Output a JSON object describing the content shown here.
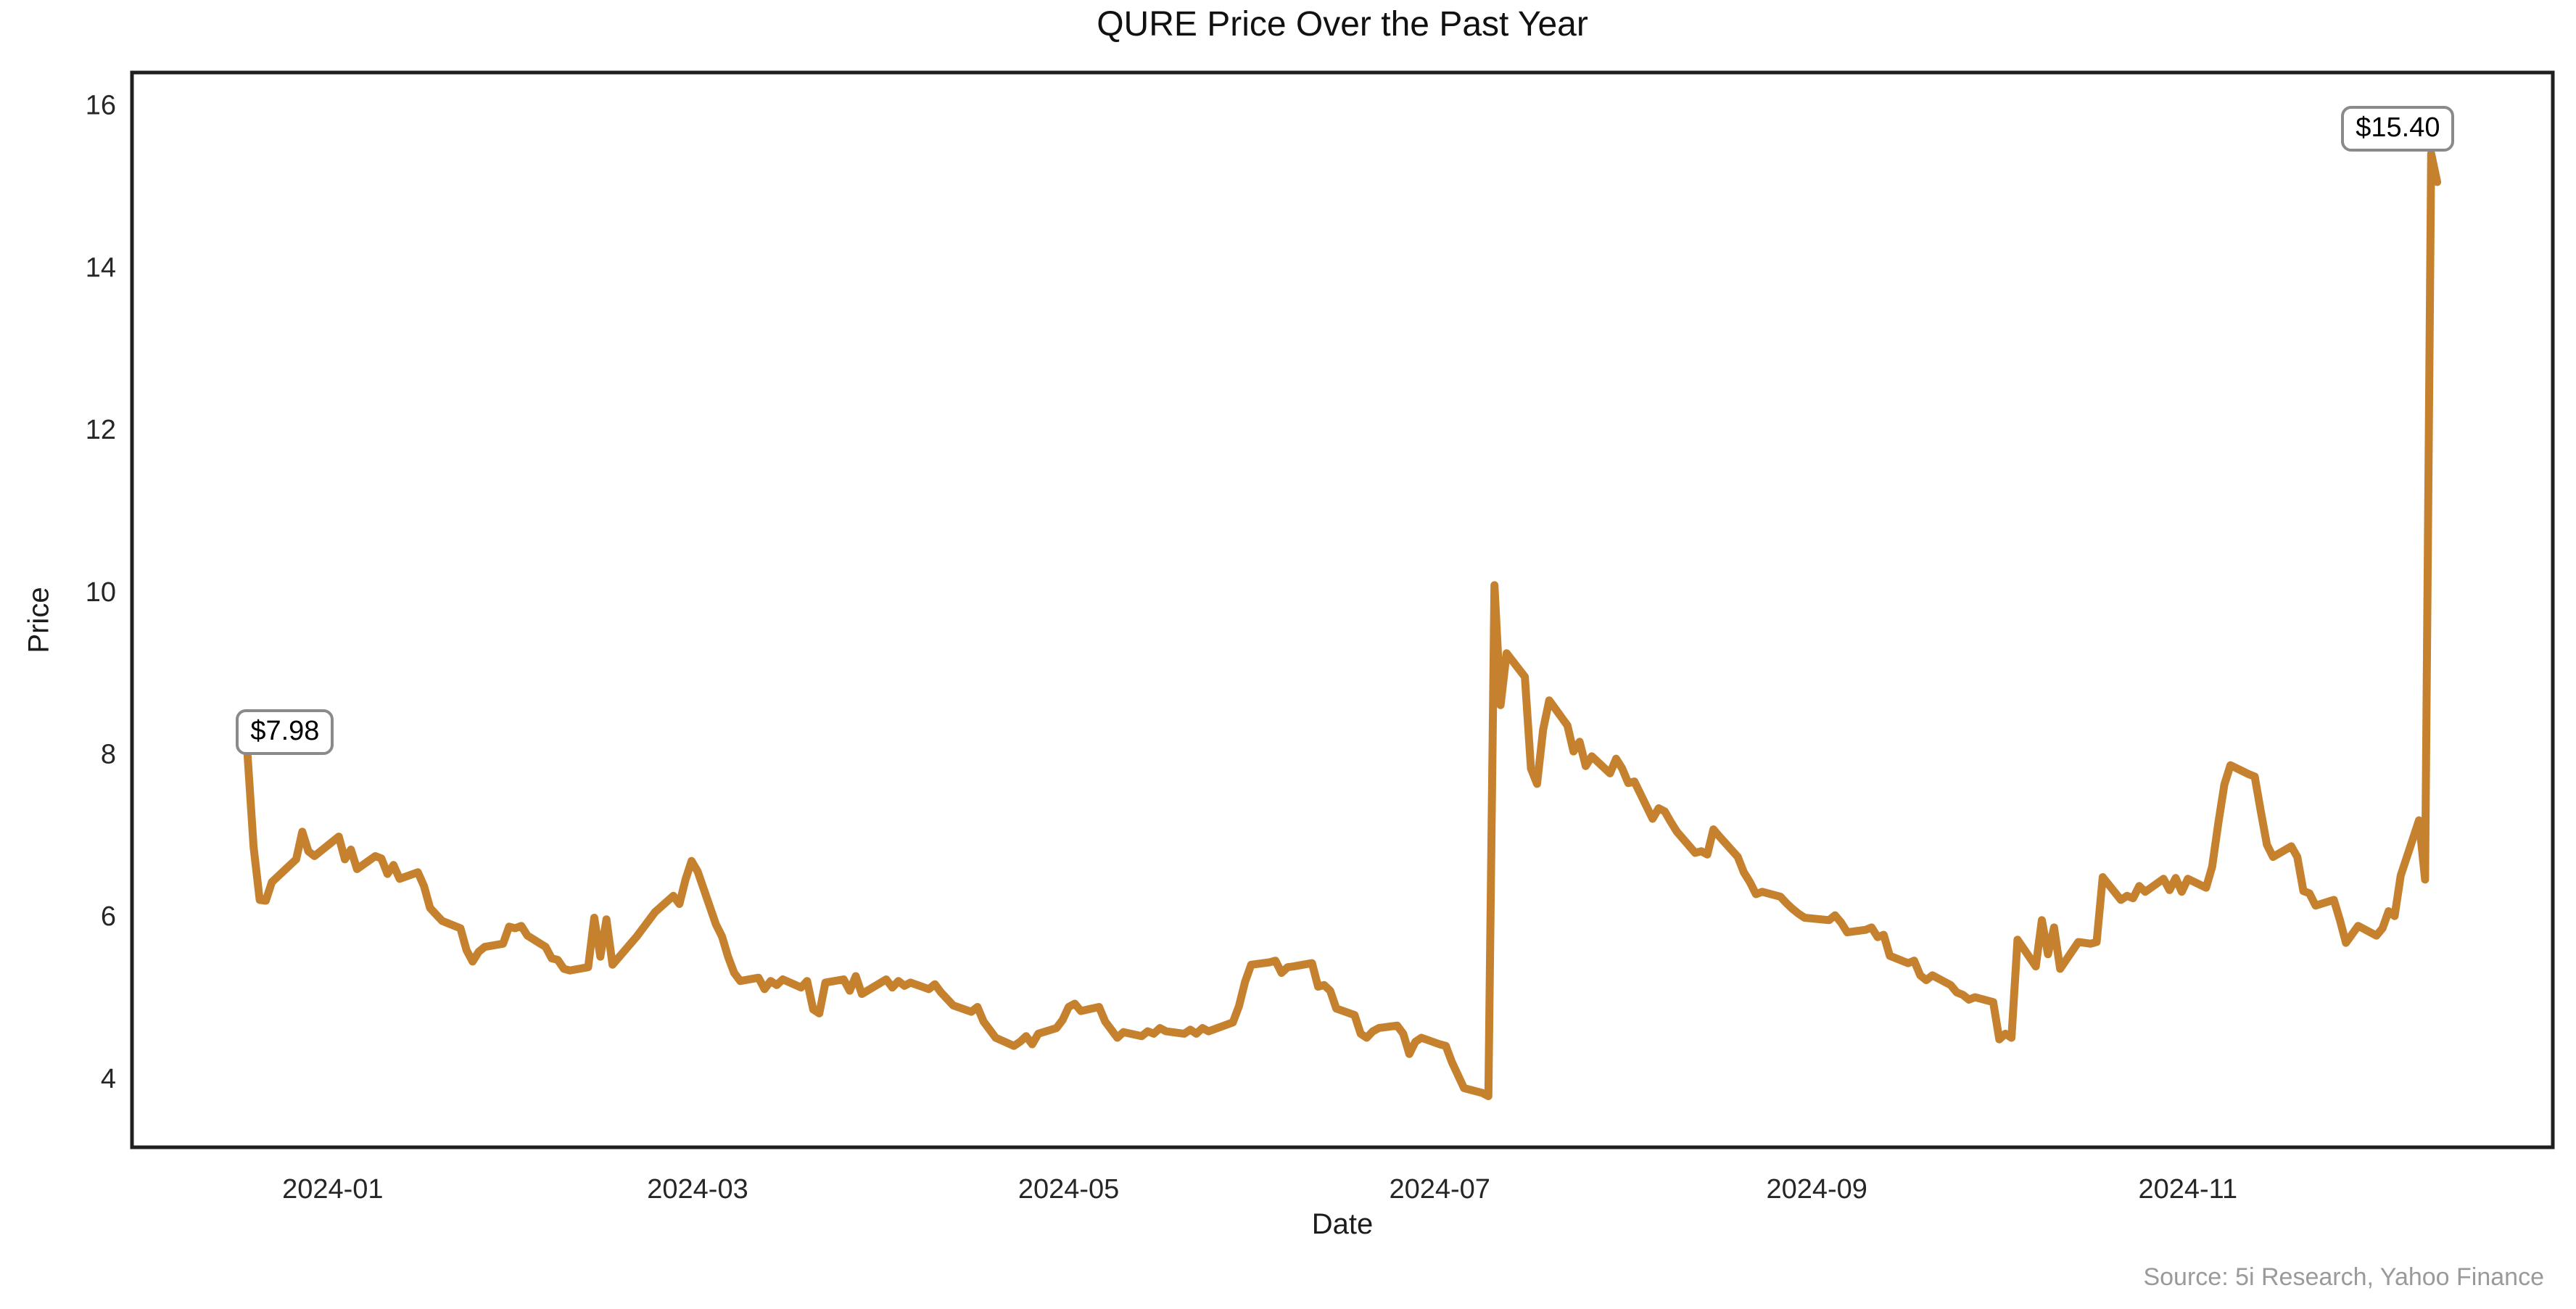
{
  "figure": {
    "title": "QURE Price Over the Past Year",
    "xlabel": "Date",
    "ylabel": "Price",
    "source": "Source: 5i Research, Yahoo Finance",
    "annotations": [
      {
        "label": "$7.98",
        "date": "2023-12-18",
        "price": 7.98,
        "position": "start"
      },
      {
        "label": "$15.40",
        "date": "2024-12-11",
        "price": 15.4,
        "position": "end"
      }
    ]
  },
  "chart_data": {
    "type": "line",
    "title": "QURE Price Over the Past Year",
    "xlabel": "Date",
    "ylabel": "Price",
    "legend": "none",
    "grid": false,
    "line_color": "#C6812F",
    "line_width": 11,
    "spine_color": "#1f1f1f",
    "x_ticks": [
      "2024-01",
      "2024-03",
      "2024-05",
      "2024-07",
      "2024-09",
      "2024-11"
    ],
    "y_ticks": [
      4,
      6,
      8,
      10,
      12,
      14,
      16
    ],
    "x_range": [
      "2023-11-29",
      "2024-12-31"
    ],
    "y_range": [
      3.15,
      16.4
    ],
    "series": [
      {
        "name": "QURE",
        "points": [
          [
            "2023-12-18",
            7.98
          ],
          [
            "2023-12-19",
            6.85
          ],
          [
            "2023-12-20",
            6.2
          ],
          [
            "2023-12-21",
            6.19
          ],
          [
            "2023-12-22",
            6.42
          ],
          [
            "2023-12-26",
            6.7
          ],
          [
            "2023-12-27",
            7.04
          ],
          [
            "2023-12-28",
            6.8
          ],
          [
            "2023-12-29",
            6.74
          ],
          [
            "2024-01-02",
            6.98
          ],
          [
            "2024-01-03",
            6.7
          ],
          [
            "2024-01-04",
            6.82
          ],
          [
            "2024-01-05",
            6.58
          ],
          [
            "2024-01-08",
            6.74
          ],
          [
            "2024-01-09",
            6.71
          ],
          [
            "2024-01-10",
            6.52
          ],
          [
            "2024-01-11",
            6.63
          ],
          [
            "2024-01-12",
            6.46
          ],
          [
            "2024-01-15",
            6.54
          ],
          [
            "2024-01-16",
            6.37
          ],
          [
            "2024-01-17",
            6.1
          ],
          [
            "2024-01-18",
            6.02
          ],
          [
            "2024-01-19",
            5.94
          ],
          [
            "2024-01-22",
            5.85
          ],
          [
            "2024-01-23",
            5.58
          ],
          [
            "2024-01-24",
            5.44
          ],
          [
            "2024-01-25",
            5.56
          ],
          [
            "2024-01-26",
            5.62
          ],
          [
            "2024-01-29",
            5.66
          ],
          [
            "2024-01-30",
            5.87
          ],
          [
            "2024-01-31",
            5.85
          ],
          [
            "2024-02-01",
            5.88
          ],
          [
            "2024-02-02",
            5.76
          ],
          [
            "2024-02-05",
            5.62
          ],
          [
            "2024-02-06",
            5.48
          ],
          [
            "2024-02-07",
            5.46
          ],
          [
            "2024-02-08",
            5.35
          ],
          [
            "2024-02-09",
            5.33
          ],
          [
            "2024-02-12",
            5.37
          ],
          [
            "2024-02-13",
            5.98
          ],
          [
            "2024-02-14",
            5.5
          ],
          [
            "2024-02-15",
            5.96
          ],
          [
            "2024-02-16",
            5.4
          ],
          [
            "2024-02-20",
            5.75
          ],
          [
            "2024-02-21",
            5.85
          ],
          [
            "2024-02-22",
            5.95
          ],
          [
            "2024-02-23",
            6.05
          ],
          [
            "2024-02-26",
            6.25
          ],
          [
            "2024-02-27",
            6.15
          ],
          [
            "2024-02-28",
            6.45
          ],
          [
            "2024-02-29",
            6.68
          ],
          [
            "2024-03-01",
            6.55
          ],
          [
            "2024-03-04",
            5.9
          ],
          [
            "2024-03-05",
            5.75
          ],
          [
            "2024-03-06",
            5.5
          ],
          [
            "2024-03-07",
            5.3
          ],
          [
            "2024-03-08",
            5.2
          ],
          [
            "2024-03-11",
            5.24
          ],
          [
            "2024-03-12",
            5.1
          ],
          [
            "2024-03-13",
            5.2
          ],
          [
            "2024-03-14",
            5.15
          ],
          [
            "2024-03-15",
            5.22
          ],
          [
            "2024-03-18",
            5.12
          ],
          [
            "2024-03-19",
            5.2
          ],
          [
            "2024-03-20",
            4.85
          ],
          [
            "2024-03-21",
            4.8
          ],
          [
            "2024-03-22",
            5.18
          ],
          [
            "2024-03-25",
            5.22
          ],
          [
            "2024-03-26",
            5.08
          ],
          [
            "2024-03-27",
            5.26
          ],
          [
            "2024-03-28",
            5.04
          ],
          [
            "2024-04-01",
            5.22
          ],
          [
            "2024-04-02",
            5.12
          ],
          [
            "2024-04-03",
            5.2
          ],
          [
            "2024-04-04",
            5.14
          ],
          [
            "2024-04-05",
            5.18
          ],
          [
            "2024-04-08",
            5.1
          ],
          [
            "2024-04-09",
            5.16
          ],
          [
            "2024-04-10",
            5.06
          ],
          [
            "2024-04-11",
            4.98
          ],
          [
            "2024-04-12",
            4.9
          ],
          [
            "2024-04-15",
            4.82
          ],
          [
            "2024-04-16",
            4.88
          ],
          [
            "2024-04-17",
            4.7
          ],
          [
            "2024-04-18",
            4.6
          ],
          [
            "2024-04-19",
            4.5
          ],
          [
            "2024-04-22",
            4.4
          ],
          [
            "2024-04-23",
            4.45
          ],
          [
            "2024-04-24",
            4.52
          ],
          [
            "2024-04-25",
            4.42
          ],
          [
            "2024-04-26",
            4.55
          ],
          [
            "2024-04-29",
            4.62
          ],
          [
            "2024-04-30",
            4.72
          ],
          [
            "2024-05-01",
            4.88
          ],
          [
            "2024-05-02",
            4.92
          ],
          [
            "2024-05-03",
            4.83
          ],
          [
            "2024-05-06",
            4.88
          ],
          [
            "2024-05-07",
            4.7
          ],
          [
            "2024-05-08",
            4.6
          ],
          [
            "2024-05-09",
            4.5
          ],
          [
            "2024-05-10",
            4.57
          ],
          [
            "2024-05-13",
            4.52
          ],
          [
            "2024-05-14",
            4.58
          ],
          [
            "2024-05-15",
            4.55
          ],
          [
            "2024-05-16",
            4.62
          ],
          [
            "2024-05-17",
            4.58
          ],
          [
            "2024-05-20",
            4.55
          ],
          [
            "2024-05-21",
            4.6
          ],
          [
            "2024-05-22",
            4.55
          ],
          [
            "2024-05-23",
            4.62
          ],
          [
            "2024-05-24",
            4.58
          ],
          [
            "2024-05-28",
            4.69
          ],
          [
            "2024-05-29",
            4.89
          ],
          [
            "2024-05-30",
            5.19
          ],
          [
            "2024-05-31",
            5.4
          ],
          [
            "2024-06-03",
            5.43
          ],
          [
            "2024-06-04",
            5.45
          ],
          [
            "2024-06-05",
            5.3
          ],
          [
            "2024-06-06",
            5.37
          ],
          [
            "2024-06-07",
            5.38
          ],
          [
            "2024-06-10",
            5.42
          ],
          [
            "2024-06-11",
            5.13
          ],
          [
            "2024-06-12",
            5.15
          ],
          [
            "2024-06-13",
            5.08
          ],
          [
            "2024-06-14",
            4.86
          ],
          [
            "2024-06-17",
            4.78
          ],
          [
            "2024-06-18",
            4.55
          ],
          [
            "2024-06-19",
            4.5
          ],
          [
            "2024-06-20",
            4.58
          ],
          [
            "2024-06-21",
            4.62
          ],
          [
            "2024-06-24",
            4.65
          ],
          [
            "2024-06-25",
            4.55
          ],
          [
            "2024-06-26",
            4.3
          ],
          [
            "2024-06-27",
            4.45
          ],
          [
            "2024-06-28",
            4.5
          ],
          [
            "2024-07-01",
            4.42
          ],
          [
            "2024-07-02",
            4.4
          ],
          [
            "2024-07-03",
            4.2
          ],
          [
            "2024-07-05",
            3.88
          ],
          [
            "2024-07-08",
            3.82
          ],
          [
            "2024-07-09",
            3.78
          ],
          [
            "2024-07-10",
            10.08
          ],
          [
            "2024-07-11",
            8.6
          ],
          [
            "2024-07-12",
            9.24
          ],
          [
            "2024-07-15",
            8.95
          ],
          [
            "2024-07-16",
            7.82
          ],
          [
            "2024-07-17",
            7.63
          ],
          [
            "2024-07-18",
            8.3
          ],
          [
            "2024-07-19",
            8.66
          ],
          [
            "2024-07-22",
            8.35
          ],
          [
            "2024-07-23",
            8.03
          ],
          [
            "2024-07-24",
            8.15
          ],
          [
            "2024-07-25",
            7.85
          ],
          [
            "2024-07-26",
            7.97
          ],
          [
            "2024-07-29",
            7.76
          ],
          [
            "2024-07-30",
            7.94
          ],
          [
            "2024-07-31",
            7.82
          ],
          [
            "2024-08-01",
            7.64
          ],
          [
            "2024-08-02",
            7.66
          ],
          [
            "2024-08-05",
            7.2
          ],
          [
            "2024-08-06",
            7.33
          ],
          [
            "2024-08-07",
            7.29
          ],
          [
            "2024-08-08",
            7.16
          ],
          [
            "2024-08-09",
            7.04
          ],
          [
            "2024-08-12",
            6.78
          ],
          [
            "2024-08-13",
            6.8
          ],
          [
            "2024-08-14",
            6.76
          ],
          [
            "2024-08-15",
            7.07
          ],
          [
            "2024-08-16",
            6.98
          ],
          [
            "2024-08-19",
            6.73
          ],
          [
            "2024-08-20",
            6.54
          ],
          [
            "2024-08-21",
            6.42
          ],
          [
            "2024-08-22",
            6.27
          ],
          [
            "2024-08-23",
            6.3
          ],
          [
            "2024-08-26",
            6.24
          ],
          [
            "2024-08-27",
            6.16
          ],
          [
            "2024-08-28",
            6.09
          ],
          [
            "2024-08-29",
            6.03
          ],
          [
            "2024-08-30",
            5.98
          ],
          [
            "2024-09-03",
            5.95
          ],
          [
            "2024-09-04",
            6.01
          ],
          [
            "2024-09-05",
            5.92
          ],
          [
            "2024-09-06",
            5.8
          ],
          [
            "2024-09-09",
            5.83
          ],
          [
            "2024-09-10",
            5.86
          ],
          [
            "2024-09-11",
            5.74
          ],
          [
            "2024-09-12",
            5.77
          ],
          [
            "2024-09-13",
            5.51
          ],
          [
            "2024-09-16",
            5.42
          ],
          [
            "2024-09-17",
            5.45
          ],
          [
            "2024-09-18",
            5.27
          ],
          [
            "2024-09-19",
            5.21
          ],
          [
            "2024-09-20",
            5.27
          ],
          [
            "2024-09-23",
            5.15
          ],
          [
            "2024-09-24",
            5.06
          ],
          [
            "2024-09-25",
            5.03
          ],
          [
            "2024-09-26",
            4.97
          ],
          [
            "2024-09-27",
            5.0
          ],
          [
            "2024-09-30",
            4.94
          ],
          [
            "2024-10-01",
            4.48
          ],
          [
            "2024-10-02",
            4.55
          ],
          [
            "2024-10-03",
            4.5
          ],
          [
            "2024-10-04",
            5.71
          ],
          [
            "2024-10-07",
            5.38
          ],
          [
            "2024-10-08",
            5.95
          ],
          [
            "2024-10-09",
            5.53
          ],
          [
            "2024-10-10",
            5.86
          ],
          [
            "2024-10-11",
            5.35
          ],
          [
            "2024-10-14",
            5.68
          ],
          [
            "2024-10-15",
            5.67
          ],
          [
            "2024-10-16",
            5.66
          ],
          [
            "2024-10-17",
            5.68
          ],
          [
            "2024-10-18",
            6.48
          ],
          [
            "2024-10-21",
            6.2
          ],
          [
            "2024-10-22",
            6.25
          ],
          [
            "2024-10-23",
            6.22
          ],
          [
            "2024-10-24",
            6.37
          ],
          [
            "2024-10-25",
            6.3
          ],
          [
            "2024-10-28",
            6.46
          ],
          [
            "2024-10-29",
            6.32
          ],
          [
            "2024-10-30",
            6.47
          ],
          [
            "2024-10-31",
            6.3
          ],
          [
            "2024-11-01",
            6.46
          ],
          [
            "2024-11-04",
            6.35
          ],
          [
            "2024-11-05",
            6.61
          ],
          [
            "2024-11-06",
            7.14
          ],
          [
            "2024-11-07",
            7.62
          ],
          [
            "2024-11-08",
            7.86
          ],
          [
            "2024-11-11",
            7.75
          ],
          [
            "2024-11-12",
            7.72
          ],
          [
            "2024-11-13",
            7.29
          ],
          [
            "2024-11-14",
            6.88
          ],
          [
            "2024-11-15",
            6.73
          ],
          [
            "2024-11-18",
            6.86
          ],
          [
            "2024-11-19",
            6.73
          ],
          [
            "2024-11-20",
            6.31
          ],
          [
            "2024-11-21",
            6.28
          ],
          [
            "2024-11-22",
            6.13
          ],
          [
            "2024-11-25",
            6.2
          ],
          [
            "2024-11-26",
            5.95
          ],
          [
            "2024-11-27",
            5.67
          ],
          [
            "2024-11-29",
            5.88
          ],
          [
            "2024-12-02",
            5.76
          ],
          [
            "2024-12-03",
            5.85
          ],
          [
            "2024-12-04",
            6.06
          ],
          [
            "2024-12-05",
            6.0
          ],
          [
            "2024-12-06",
            6.5
          ],
          [
            "2024-12-09",
            7.18
          ],
          [
            "2024-12-10",
            6.45
          ],
          [
            "2024-12-11",
            15.4
          ],
          [
            "2024-12-12",
            15.05
          ]
        ]
      }
    ]
  }
}
